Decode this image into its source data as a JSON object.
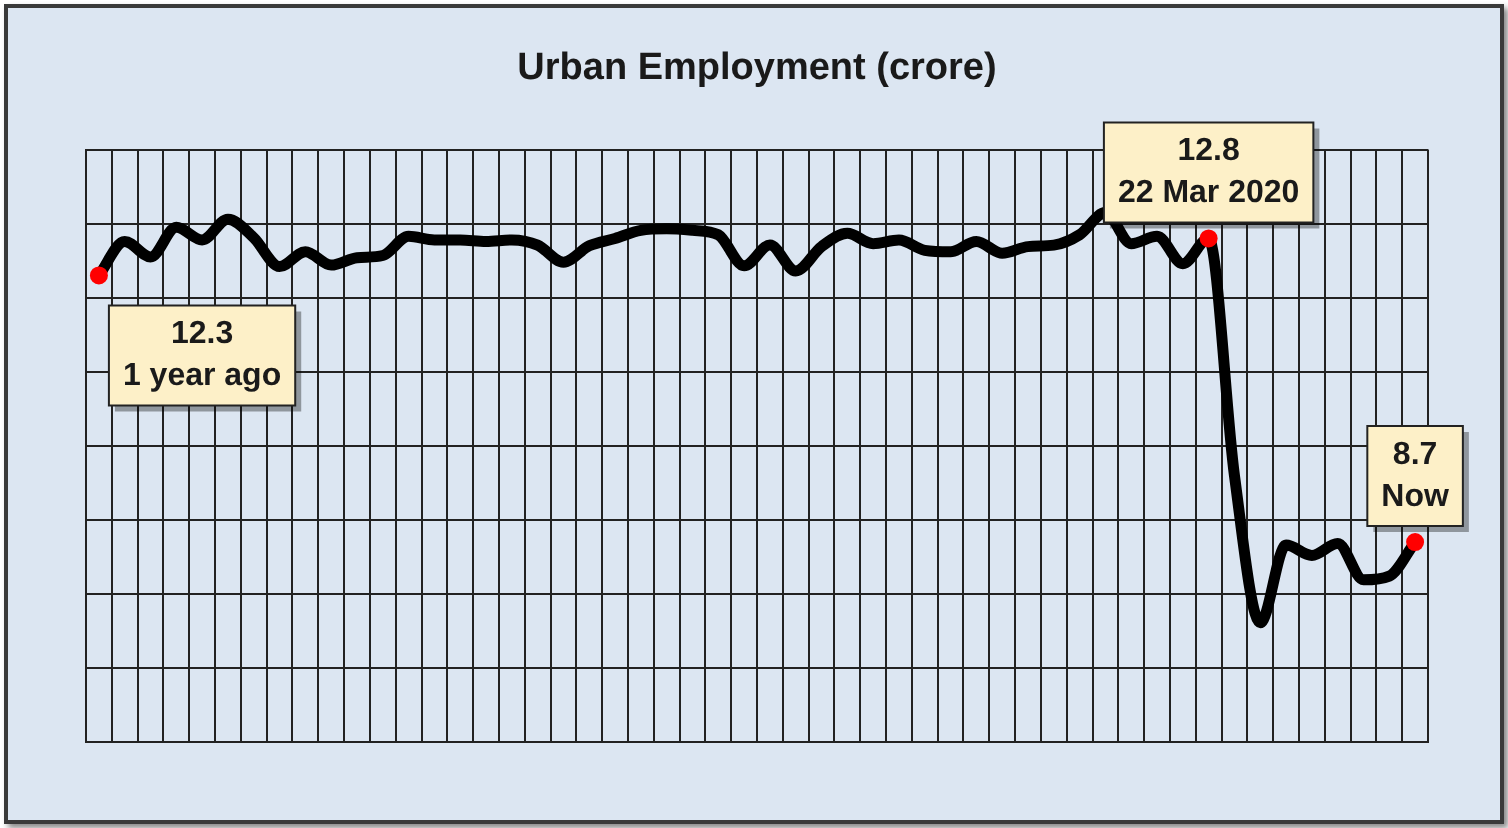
{
  "chart_data": {
    "type": "line",
    "title": "Urban Employment (crore)",
    "categories": [
      null,
      null,
      null,
      null,
      null,
      null,
      null,
      null,
      null,
      null,
      null,
      null,
      null,
      null,
      null,
      null,
      null,
      null,
      null,
      null,
      null,
      null,
      null,
      null,
      null,
      null,
      null,
      null,
      null,
      null,
      null,
      null,
      null,
      null,
      null,
      null,
      null,
      null,
      null,
      null,
      null,
      null,
      null,
      null,
      null,
      null,
      null,
      null,
      null,
      null,
      null,
      null
    ],
    "series": [
      {
        "color": "#000000",
        "values": [
          12.3,
          12.76,
          12.55,
          12.95,
          12.78,
          13.06,
          12.81,
          12.42,
          12.62,
          12.44,
          12.54,
          12.57,
          12.83,
          12.78,
          12.78,
          12.76,
          12.78,
          12.71,
          12.48,
          12.7,
          12.8,
          12.91,
          12.93,
          12.91,
          12.85,
          12.43,
          12.71,
          12.36,
          12.69,
          12.87,
          12.73,
          12.78,
          12.64,
          12.62,
          12.76,
          12.6,
          12.69,
          12.71,
          12.85,
          13.15,
          12.73,
          12.83,
          12.46,
          12.8,
          9.6,
          7.61,
          8.66,
          8.52,
          8.68,
          8.19,
          8.24,
          8.7
        ],
        "value_labels": [
          "12.3\n1 year ago",
          null,
          null,
          null,
          null,
          null,
          null,
          null,
          null,
          null,
          null,
          null,
          null,
          null,
          null,
          null,
          null,
          null,
          null,
          null,
          null,
          null,
          null,
          null,
          null,
          null,
          null,
          null,
          null,
          null,
          null,
          null,
          null,
          null,
          null,
          null,
          null,
          null,
          null,
          null,
          null,
          null,
          null,
          "12.8\n22 Mar 2020",
          null,
          null,
          null,
          null,
          null,
          null,
          null,
          "8.7\nNow"
        ]
      }
    ],
    "ylim": [
      6,
      14
    ],
    "yticks": [
      {
        "value": 6,
        "label": null
      },
      {
        "value": 7,
        "label": null
      },
      {
        "value": 8,
        "label": null
      },
      {
        "value": 9,
        "label": null
      },
      {
        "value": 10,
        "label": null
      },
      {
        "value": 11,
        "label": null
      },
      {
        "value": 12,
        "label": null
      },
      {
        "value": 13,
        "label": null
      },
      {
        "value": 14,
        "label": null
      }
    ],
    "grid": true,
    "tick_labels": false
  }
}
